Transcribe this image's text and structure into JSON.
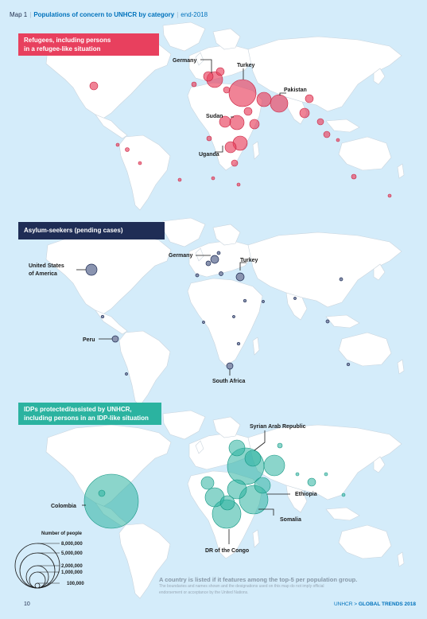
{
  "header": {
    "map_label": "Map 1",
    "title": "Populations of concern to UNHCR by category",
    "subtitle": "end-2018"
  },
  "colors": {
    "ocean": "#d4ecfa",
    "land": "#ffffff",
    "refugees": "#e8405e",
    "asylum": "#7f8aa8",
    "idps": "#2bb3a0",
    "banner_asylum": "#1f2d55"
  },
  "panels": [
    {
      "id": "refugees",
      "banner": [
        "Refugees, including persons",
        "in a refugee-like situation"
      ],
      "labels": [
        "Germany",
        "Turkey",
        "Pakistan",
        "Sudan",
        "Uganda"
      ]
    },
    {
      "id": "asylum",
      "banner": [
        "Asylum-seekers (pending cases)"
      ],
      "labels": [
        "United States",
        "of America",
        "Germany",
        "Turkey",
        "Peru",
        "South Africa"
      ]
    },
    {
      "id": "idps",
      "banner": [
        "IDPs protected/assisted by UNHCR,",
        "including persons in an IDP-like situation"
      ],
      "labels": [
        "Syrian Arab Republic",
        "Ethiopia",
        "Colombia",
        "Somalia",
        "DR of the Congo"
      ]
    }
  ],
  "legend": {
    "title": "Number of people",
    "values": [
      "8,000,000",
      "5,000,000",
      "2,000,000",
      "1,000,000",
      "100,000"
    ]
  },
  "disclaimer": {
    "main": "A country is listed if it features among the top-5 per population group.",
    "fine_1": "The boundaries and names shown and the designations used on this map do not imply official",
    "fine_2": "endorsement or acceptance by the United Nations."
  },
  "footer": {
    "page_number": "10",
    "publisher": "UNHCR",
    "separator": ">",
    "report": "GLOBAL TRENDS 2018"
  }
}
